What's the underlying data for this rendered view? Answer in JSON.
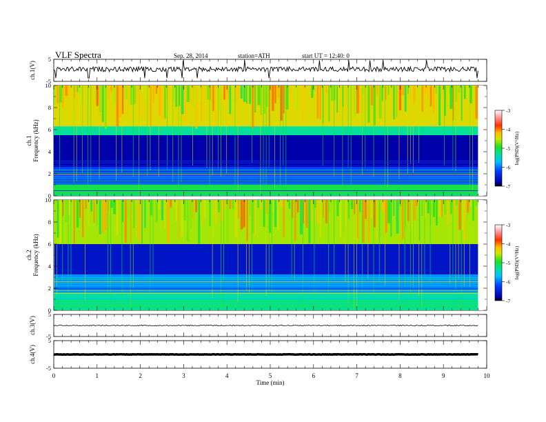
{
  "header": {
    "title": "VLF  Spectra",
    "date": "Sep. 28, 2014",
    "station": "station=ATH",
    "start": "start  UT =   12:40: 0"
  },
  "chart_data": [
    {
      "type": "line",
      "panel": "ch1-waveform",
      "ylabel": "ch.1(V)",
      "ylim": [
        -5,
        5
      ],
      "yticks": [
        "5",
        "-5"
      ],
      "xlim": [
        0,
        10
      ],
      "series": [
        {
          "shape": "noisy waveform centred near 0 V with short spikes",
          "mean": 0.5,
          "end_min": 9.8
        }
      ]
    },
    {
      "type": "heatmap",
      "panel": "ch1-spectrogram",
      "ylabel": "ch.1\nFrequency  (kHz)",
      "ylim": [
        0,
        10
      ],
      "yticks": [
        "0",
        "2",
        "4",
        "6",
        "8",
        "10"
      ],
      "xlim": [
        0,
        10
      ],
      "colorbar": {
        "label": "log(PSD)(V²/Hz)",
        "range": [
          -7,
          -3
        ],
        "ticks": [
          "-3",
          "-4",
          "-5",
          "-6",
          "-7"
        ]
      },
      "bands": [
        {
          "from_khz": 6.3,
          "to_khz": 10,
          "logpsd": -4.4
        },
        {
          "from_khz": 5.5,
          "to_khz": 6.3,
          "logpsd": -5.3
        },
        {
          "from_khz": 2.6,
          "to_khz": 5.5,
          "logpsd": -6.8
        },
        {
          "from_khz": 1.0,
          "to_khz": 2.6,
          "logpsd": -6.2
        },
        {
          "from_khz": 0,
          "to_khz": 1.0,
          "logpsd": -5.0
        }
      ]
    },
    {
      "type": "heatmap",
      "panel": "ch2-spectrogram",
      "ylabel": "ch.2\nFrequency  (kHz)",
      "ylim": [
        0,
        10
      ],
      "yticks": [
        "0",
        "2",
        "4",
        "6",
        "8",
        "10"
      ],
      "xlim": [
        0,
        10
      ],
      "colorbar": {
        "label": "log(PSD)(V²/Hz)",
        "range": [
          -7,
          -3
        ],
        "ticks": [
          "-3",
          "-4",
          "-5",
          "-6",
          "-7"
        ]
      },
      "bands": [
        {
          "from_khz": 6.0,
          "to_khz": 10,
          "logpsd": -4.6
        },
        {
          "from_khz": 3.2,
          "to_khz": 6.0,
          "logpsd": -6.6
        },
        {
          "from_khz": 1.6,
          "to_khz": 3.2,
          "logpsd": -5.9
        },
        {
          "from_khz": 0,
          "to_khz": 1.6,
          "logpsd": -5.3
        }
      ]
    },
    {
      "type": "line",
      "panel": "ch3-waveform",
      "ylabel": "ch.3(V)",
      "ylim": [
        -5,
        5
      ],
      "yticks": [
        "5",
        "-5"
      ],
      "xlim": [
        0,
        10
      ],
      "series": [
        {
          "shape": "flat line near 0 V",
          "mean": 0,
          "end_min": 9.8
        }
      ]
    },
    {
      "type": "line",
      "panel": "ch4-waveform",
      "ylabel": "ch.4(V)",
      "ylim": [
        -5,
        5
      ],
      "yticks": [
        "5",
        "-5"
      ],
      "xlim": [
        0,
        10
      ],
      "xlabel": "Time  (min)",
      "xticks": [
        "0",
        "1",
        "2",
        "3",
        "4",
        "5",
        "6",
        "7",
        "8",
        "9",
        "10"
      ],
      "series": [
        {
          "shape": "thick flat line near 0 V",
          "mean": 0,
          "end_min": 9.8
        }
      ]
    }
  ]
}
